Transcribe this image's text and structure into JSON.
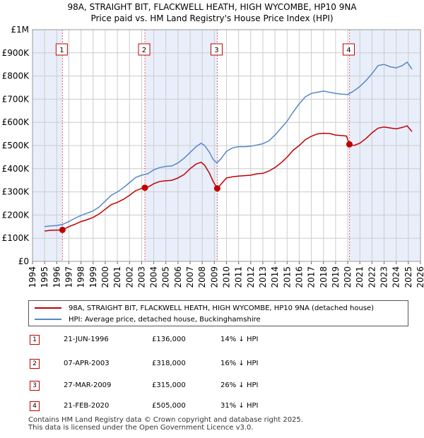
{
  "header": {
    "title_line1": "98A, STRAIGHT BIT, FLACKWELL HEATH, HIGH WYCOMBE, HP10 9NA",
    "title_line2": "Price paid vs. HM Land Registry's House Price Index (HPI)"
  },
  "legend": {
    "property_label": "98A, STRAIGHT BIT, FLACKWELL HEATH, HIGH WYCOMBE, HP10 9NA (detached house)",
    "hpi_label": "HPI: Average price, detached house, Buckinghamshire"
  },
  "transactions": [
    {
      "num": "1",
      "date": "21-JUN-1996",
      "price": "£136,000",
      "hpi": "14% ↓ HPI"
    },
    {
      "num": "2",
      "date": "07-APR-2003",
      "price": "£318,000",
      "hpi": "16% ↓ HPI"
    },
    {
      "num": "3",
      "date": "27-MAR-2009",
      "price": "£315,000",
      "hpi": "26% ↓ HPI"
    },
    {
      "num": "4",
      "date": "21-FEB-2020",
      "price": "£505,000",
      "hpi": "31% ↓ HPI"
    }
  ],
  "footer": {
    "line1": "Contains HM Land Registry data © Crown copyright and database right 2025.",
    "line2": "This data is licensed under the Open Government Licence v3.0."
  },
  "colors": {
    "property": "#c00000",
    "hpi": "#5588cc",
    "shade": "#e8eefa",
    "grid": "#cccccc"
  },
  "chart_data": {
    "type": "line",
    "title": "98A, STRAIGHT BIT, FLACKWELL HEATH, HIGH WYCOMBE, HP10 9NA — Price paid vs. HM Land Registry's House Price Index (HPI)",
    "xlabel": "",
    "ylabel": "",
    "xlim": [
      1994,
      2026
    ],
    "ylim": [
      0,
      1000000
    ],
    "x_ticks": [
      1994,
      1995,
      1996,
      1997,
      1998,
      1999,
      2000,
      2001,
      2002,
      2003,
      2004,
      2005,
      2006,
      2007,
      2008,
      2009,
      2010,
      2011,
      2012,
      2013,
      2014,
      2015,
      2016,
      2017,
      2018,
      2019,
      2020,
      2021,
      2022,
      2023,
      2024,
      2025,
      2026
    ],
    "y_ticks": [
      {
        "value": 0,
        "label": "£0"
      },
      {
        "value": 100000,
        "label": "£100K"
      },
      {
        "value": 200000,
        "label": "£200K"
      },
      {
        "value": 300000,
        "label": "£300K"
      },
      {
        "value": 400000,
        "label": "£400K"
      },
      {
        "value": 500000,
        "label": "£500K"
      },
      {
        "value": 600000,
        "label": "£600K"
      },
      {
        "value": 700000,
        "label": "£700K"
      },
      {
        "value": 800000,
        "label": "£800K"
      },
      {
        "value": 900000,
        "label": "£900K"
      },
      {
        "value": 1000000,
        "label": "£1M"
      }
    ],
    "grid": true,
    "legend_position": "below",
    "series": [
      {
        "name": "98A, STRAIGHT BIT, FLACKWELL HEATH, HIGH WYCOMBE, HP10 9NA (detached house)",
        "color": "#c00000",
        "points": [
          [
            1995.0,
            131000
          ],
          [
            1995.5,
            134000
          ],
          [
            1996.0,
            135000
          ],
          [
            1996.47,
            136000
          ],
          [
            1997.0,
            150000
          ],
          [
            1997.5,
            160000
          ],
          [
            1998.0,
            172000
          ],
          [
            1998.5,
            180000
          ],
          [
            1999.0,
            190000
          ],
          [
            1999.5,
            205000
          ],
          [
            2000.0,
            225000
          ],
          [
            2000.5,
            245000
          ],
          [
            2001.0,
            255000
          ],
          [
            2001.5,
            268000
          ],
          [
            2002.0,
            285000
          ],
          [
            2002.5,
            305000
          ],
          [
            2003.0,
            315000
          ],
          [
            2003.27,
            318000
          ],
          [
            2003.5,
            320000
          ],
          [
            2004.0,
            335000
          ],
          [
            2004.5,
            345000
          ],
          [
            2005.0,
            348000
          ],
          [
            2005.5,
            350000
          ],
          [
            2006.0,
            360000
          ],
          [
            2006.5,
            375000
          ],
          [
            2007.0,
            400000
          ],
          [
            2007.5,
            420000
          ],
          [
            2007.9,
            428000
          ],
          [
            2008.2,
            415000
          ],
          [
            2008.6,
            380000
          ],
          [
            2008.9,
            345000
          ],
          [
            2009.24,
            315000
          ],
          [
            2009.5,
            330000
          ],
          [
            2010.0,
            360000
          ],
          [
            2010.5,
            365000
          ],
          [
            2011.0,
            368000
          ],
          [
            2011.5,
            370000
          ],
          [
            2012.0,
            372000
          ],
          [
            2012.5,
            378000
          ],
          [
            2013.0,
            380000
          ],
          [
            2013.5,
            390000
          ],
          [
            2014.0,
            405000
          ],
          [
            2014.5,
            425000
          ],
          [
            2015.0,
            450000
          ],
          [
            2015.5,
            480000
          ],
          [
            2016.0,
            500000
          ],
          [
            2016.5,
            525000
          ],
          [
            2017.0,
            540000
          ],
          [
            2017.5,
            550000
          ],
          [
            2018.0,
            553000
          ],
          [
            2018.5,
            552000
          ],
          [
            2019.0,
            545000
          ],
          [
            2019.5,
            543000
          ],
          [
            2019.9,
            541000
          ],
          [
            2020.14,
            505000
          ],
          [
            2020.5,
            500000
          ],
          [
            2021.0,
            510000
          ],
          [
            2021.5,
            530000
          ],
          [
            2022.0,
            555000
          ],
          [
            2022.5,
            575000
          ],
          [
            2023.0,
            580000
          ],
          [
            2023.5,
            576000
          ],
          [
            2024.0,
            572000
          ],
          [
            2024.5,
            578000
          ],
          [
            2024.9,
            585000
          ],
          [
            2025.3,
            560000
          ]
        ]
      },
      {
        "name": "HPI: Average price, detached house, Buckinghamshire",
        "color": "#5588cc",
        "points": [
          [
            1995.0,
            150000
          ],
          [
            1995.5,
            153000
          ],
          [
            1996.0,
            155000
          ],
          [
            1996.5,
            160000
          ],
          [
            1997.0,
            172000
          ],
          [
            1997.5,
            186000
          ],
          [
            1998.0,
            198000
          ],
          [
            1998.5,
            208000
          ],
          [
            1999.0,
            218000
          ],
          [
            1999.5,
            235000
          ],
          [
            2000.0,
            260000
          ],
          [
            2000.5,
            285000
          ],
          [
            2001.0,
            300000
          ],
          [
            2001.5,
            318000
          ],
          [
            2002.0,
            340000
          ],
          [
            2002.5,
            362000
          ],
          [
            2003.0,
            372000
          ],
          [
            2003.5,
            378000
          ],
          [
            2004.0,
            395000
          ],
          [
            2004.5,
            405000
          ],
          [
            2005.0,
            410000
          ],
          [
            2005.5,
            412000
          ],
          [
            2006.0,
            425000
          ],
          [
            2006.5,
            445000
          ],
          [
            2007.0,
            470000
          ],
          [
            2007.5,
            495000
          ],
          [
            2007.9,
            510000
          ],
          [
            2008.2,
            500000
          ],
          [
            2008.6,
            470000
          ],
          [
            2008.9,
            440000
          ],
          [
            2009.2,
            425000
          ],
          [
            2009.5,
            440000
          ],
          [
            2010.0,
            475000
          ],
          [
            2010.5,
            490000
          ],
          [
            2011.0,
            495000
          ],
          [
            2011.5,
            495000
          ],
          [
            2012.0,
            497000
          ],
          [
            2012.5,
            502000
          ],
          [
            2013.0,
            508000
          ],
          [
            2013.5,
            520000
          ],
          [
            2014.0,
            545000
          ],
          [
            2014.5,
            575000
          ],
          [
            2015.0,
            605000
          ],
          [
            2015.5,
            645000
          ],
          [
            2016.0,
            680000
          ],
          [
            2016.5,
            710000
          ],
          [
            2017.0,
            725000
          ],
          [
            2017.5,
            730000
          ],
          [
            2018.0,
            735000
          ],
          [
            2018.5,
            730000
          ],
          [
            2019.0,
            725000
          ],
          [
            2019.5,
            722000
          ],
          [
            2020.0,
            720000
          ],
          [
            2020.5,
            735000
          ],
          [
            2021.0,
            755000
          ],
          [
            2021.5,
            780000
          ],
          [
            2022.0,
            810000
          ],
          [
            2022.5,
            845000
          ],
          [
            2023.0,
            850000
          ],
          [
            2023.5,
            840000
          ],
          [
            2024.0,
            835000
          ],
          [
            2024.5,
            845000
          ],
          [
            2024.9,
            860000
          ],
          [
            2025.3,
            830000
          ]
        ]
      }
    ],
    "sales": [
      {
        "num": "1",
        "x": 1996.47,
        "y": 136000
      },
      {
        "num": "2",
        "x": 2003.27,
        "y": 318000
      },
      {
        "num": "3",
        "x": 2009.24,
        "y": 315000
      },
      {
        "num": "4",
        "x": 2020.14,
        "y": 505000
      }
    ],
    "shaded_ranges": [
      [
        1994,
        1996.47
      ],
      [
        2003.27,
        2009.24
      ],
      [
        2020.14,
        2026
      ]
    ]
  }
}
